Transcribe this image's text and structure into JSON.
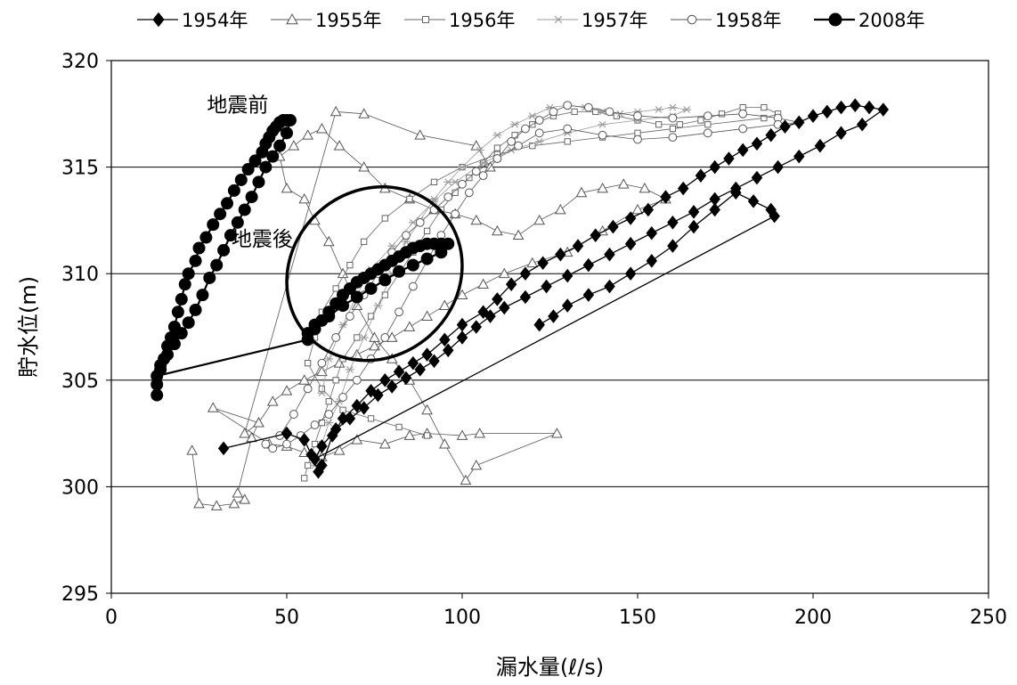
{
  "chart_data": {
    "type": "scatter",
    "xlabel": "漏水量(ℓ/s)",
    "ylabel": "貯水位(m)",
    "xlim": [
      0,
      250
    ],
    "ylim": [
      295,
      320
    ],
    "xticks": [
      0,
      50,
      100,
      150,
      200,
      250
    ],
    "yticks": [
      295,
      300,
      305,
      310,
      315,
      320
    ],
    "grid": "horizontal",
    "legend_position": "top",
    "annotations": [
      {
        "text": "地震前",
        "x": 36,
        "y": 317.6
      },
      {
        "text": "地震後",
        "x": 43,
        "y": 311.3
      }
    ],
    "highlight_ellipse": {
      "cx": 75,
      "cy": 310,
      "rx": 26,
      "ry": 3.9,
      "angle_deg": -42
    },
    "series": [
      {
        "name": "1954年",
        "marker": "diamond-filled",
        "color": "#000000",
        "x": [
          32,
          50,
          55,
          57,
          59,
          60,
          63,
          66,
          70,
          74,
          78,
          82,
          86,
          90,
          95,
          100,
          106,
          110,
          114,
          118,
          123,
          128,
          133,
          138,
          143,
          148,
          153,
          158,
          163,
          168,
          172,
          176,
          180,
          184,
          188,
          192,
          196,
          200,
          204,
          208,
          212,
          216,
          220,
          214,
          208,
          202,
          196,
          190,
          184,
          178,
          172,
          166,
          160,
          154,
          148,
          142,
          136,
          130,
          124,
          118,
          112,
          108,
          104,
          100,
          96,
          92,
          88,
          84,
          80,
          76,
          72,
          68,
          64,
          60,
          58,
          189,
          188,
          183,
          178,
          172,
          166,
          160,
          154,
          148,
          142,
          136,
          130,
          126,
          122
        ],
        "y": [
          301.8,
          302.5,
          302.2,
          301.5,
          300.7,
          301.0,
          302.4,
          303.2,
          303.8,
          304.5,
          305.0,
          305.4,
          305.8,
          306.2,
          306.9,
          307.6,
          308.2,
          308.8,
          309.5,
          310.0,
          310.5,
          310.9,
          311.3,
          311.8,
          312.2,
          312.6,
          313.0,
          313.6,
          314.0,
          314.6,
          315.0,
          315.4,
          315.8,
          316.1,
          316.5,
          316.9,
          317.1,
          317.4,
          317.6,
          317.8,
          317.9,
          317.8,
          317.7,
          317.0,
          316.6,
          316.0,
          315.5,
          315.0,
          314.5,
          314.0,
          313.5,
          312.9,
          312.4,
          311.9,
          311.4,
          310.9,
          310.4,
          309.9,
          309.4,
          308.9,
          308.4,
          308.0,
          307.5,
          307.0,
          306.4,
          305.9,
          305.5,
          305.1,
          304.7,
          304.3,
          303.7,
          303.2,
          302.7,
          301.9,
          301.3,
          312.7,
          313.0,
          313.4,
          313.8,
          313.0,
          312.2,
          311.3,
          310.6,
          310.0,
          309.4,
          309.0,
          308.5,
          308.0,
          307.6
        ]
      },
      {
        "name": "1955年",
        "marker": "triangle-open",
        "color": "#555555",
        "x": [
          23,
          25,
          30,
          35,
          38,
          36,
          40,
          42,
          29,
          45,
          50,
          55,
          60,
          65,
          70,
          78,
          85,
          90,
          100,
          105,
          127,
          104,
          101,
          95,
          90,
          85,
          80,
          75,
          70,
          66,
          62,
          58,
          55,
          50,
          48,
          52,
          56,
          60,
          65,
          72,
          78,
          85,
          92,
          98,
          104,
          110,
          116,
          122,
          128,
          134,
          140,
          146,
          152,
          158,
          150,
          140,
          130,
          120,
          112,
          106,
          100,
          95,
          90,
          85,
          80,
          75,
          70,
          65,
          60,
          55,
          50,
          46,
          42,
          38,
          64,
          72,
          88,
          104,
          108
        ],
        "y": [
          301.7,
          299.2,
          299.1,
          299.2,
          299.4,
          299.7,
          302.3,
          303.0,
          303.7,
          302.0,
          301.9,
          301.6,
          301.4,
          301.7,
          302.2,
          302.0,
          302.4,
          302.5,
          302.4,
          302.5,
          302.5,
          301.0,
          300.3,
          302.0,
          303.6,
          305.0,
          306.0,
          307.0,
          308.5,
          310.0,
          311.5,
          312.5,
          313.5,
          314.0,
          315.5,
          316.0,
          316.5,
          316.8,
          316.0,
          315.0,
          314.0,
          313.5,
          313.0,
          312.8,
          312.5,
          312.0,
          311.8,
          312.5,
          313.0,
          313.8,
          314.0,
          314.2,
          314.0,
          313.5,
          313.0,
          312.0,
          311.0,
          310.5,
          310.0,
          309.5,
          309.0,
          308.5,
          308.0,
          307.5,
          307.0,
          306.6,
          306.2,
          305.8,
          305.4,
          305.0,
          304.5,
          304.0,
          303.0,
          302.5,
          317.6,
          317.5,
          316.5,
          316.0,
          315.0
        ]
      },
      {
        "name": "1956年",
        "marker": "square-open",
        "color": "#666666",
        "x": [
          55,
          56,
          58,
          60,
          62,
          64,
          66,
          70,
          74,
          78,
          82,
          86,
          90,
          94,
          98,
          102,
          106,
          110,
          115,
          120,
          126,
          132,
          138,
          144,
          150,
          156,
          162,
          168,
          174,
          180,
          186,
          190,
          186,
          170,
          160,
          150,
          140,
          130,
          120,
          110,
          100,
          92,
          85,
          78,
          72,
          68,
          64,
          60,
          58,
          56,
          60,
          66,
          74,
          82,
          90
        ],
        "y": [
          300.4,
          301.0,
          302.0,
          303.0,
          304.0,
          305.0,
          306.0,
          307.0,
          308.0,
          309.0,
          310.0,
          311.0,
          312.0,
          313.0,
          313.8,
          314.5,
          315.2,
          315.9,
          316.5,
          317.0,
          317.4,
          317.6,
          317.6,
          317.4,
          317.2,
          317.0,
          317.0,
          317.2,
          317.5,
          317.8,
          317.8,
          317.5,
          317.3,
          317.0,
          316.8,
          316.6,
          316.4,
          316.2,
          316.0,
          315.6,
          315.0,
          314.3,
          313.5,
          312.6,
          311.5,
          310.4,
          309.3,
          308.2,
          307.0,
          305.8,
          304.6,
          303.6,
          303.2,
          302.8,
          302.4
        ]
      },
      {
        "name": "1957年",
        "marker": "asterisk",
        "color": "#999999",
        "x": [
          58,
          60,
          62,
          65,
          68,
          72,
          76,
          80,
          84,
          88,
          92,
          96,
          100,
          105,
          110,
          115,
          120,
          125,
          130,
          135,
          140,
          145,
          150,
          156,
          160,
          164,
          160,
          150,
          140,
          130,
          122,
          114,
          106,
          98,
          92,
          86,
          80,
          74,
          70,
          66,
          62,
          60
        ],
        "y": [
          301.0,
          302.0,
          303.0,
          304.0,
          305.5,
          307.0,
          308.5,
          310.0,
          311.5,
          312.5,
          313.5,
          314.3,
          315.0,
          315.8,
          316.5,
          317.0,
          317.4,
          317.8,
          317.9,
          317.8,
          317.6,
          317.5,
          317.6,
          317.7,
          317.8,
          317.7,
          317.4,
          317.2,
          317.0,
          316.6,
          316.2,
          315.8,
          315.2,
          314.3,
          313.4,
          312.4,
          311.3,
          310.2,
          309.0,
          307.6,
          306.0,
          304.4
        ]
      },
      {
        "name": "1958年",
        "marker": "circle-open",
        "color": "#555555",
        "x": [
          44,
          46,
          50,
          54,
          58,
          62,
          66,
          70,
          74,
          78,
          82,
          86,
          90,
          94,
          98,
          102,
          106,
          110,
          114,
          118,
          122,
          126,
          130,
          136,
          142,
          150,
          160,
          170,
          180,
          190,
          196,
          190,
          180,
          170,
          160,
          150,
          140,
          130,
          122,
          116,
          110,
          104,
          100,
          96,
          92,
          88,
          84,
          80,
          76,
          72,
          68,
          64,
          60,
          56,
          52,
          48
        ],
        "y": [
          302.0,
          301.8,
          302.0,
          302.4,
          302.9,
          303.4,
          304.2,
          305.0,
          306.0,
          307.0,
          308.2,
          309.4,
          310.6,
          311.8,
          312.8,
          313.8,
          314.6,
          315.4,
          316.2,
          316.8,
          317.2,
          317.6,
          317.9,
          317.8,
          317.6,
          317.4,
          317.3,
          317.4,
          317.5,
          317.3,
          317.1,
          317.0,
          316.8,
          316.6,
          316.4,
          316.3,
          316.5,
          316.8,
          316.6,
          316.0,
          315.4,
          314.8,
          314.2,
          313.6,
          313.0,
          312.4,
          311.8,
          311.0,
          310.0,
          309.0,
          308.0,
          307.0,
          305.8,
          304.6,
          303.4,
          302.4
        ]
      },
      {
        "name": "2008年",
        "marker": "circle-filled",
        "color": "#000000",
        "x": [
          13,
          13,
          14,
          15,
          16,
          17,
          18,
          19,
          20,
          21,
          22,
          24,
          25,
          27,
          29,
          31,
          33,
          35,
          37,
          39,
          41,
          43,
          44,
          45,
          46,
          47,
          48,
          49,
          50,
          51,
          50,
          48,
          46,
          44,
          42,
          40,
          38,
          36,
          34,
          32,
          30,
          28,
          26,
          24,
          22,
          20,
          18,
          16,
          14,
          13,
          56,
          58,
          60,
          62,
          64,
          66,
          68,
          70,
          72,
          74,
          76,
          78,
          80,
          82,
          84,
          86,
          88,
          90,
          92,
          94,
          96,
          94,
          90,
          86,
          82,
          78,
          74,
          70,
          66,
          62,
          58,
          56
        ],
        "y": [
          304.3,
          304.8,
          305.5,
          306.0,
          306.6,
          307.0,
          307.5,
          308.2,
          308.8,
          309.5,
          310.0,
          310.6,
          311.2,
          311.7,
          312.3,
          312.8,
          313.3,
          313.9,
          314.4,
          314.9,
          315.3,
          315.7,
          316.1,
          316.4,
          316.7,
          316.9,
          317.1,
          317.2,
          317.2,
          317.2,
          316.6,
          316.0,
          315.5,
          315.0,
          314.3,
          313.6,
          313.0,
          312.4,
          311.8,
          311.1,
          310.4,
          309.8,
          309.0,
          308.3,
          307.7,
          307.2,
          306.7,
          306.2,
          305.7,
          305.2,
          306.9,
          307.4,
          307.8,
          308.2,
          308.6,
          309.0,
          309.3,
          309.6,
          309.8,
          310.0,
          310.2,
          310.4,
          310.6,
          310.8,
          311.0,
          311.2,
          311.3,
          311.4,
          311.4,
          311.4,
          311.4,
          311.0,
          310.7,
          310.4,
          310.1,
          309.7,
          309.3,
          308.9,
          308.5,
          308.0,
          307.6,
          307.2
        ]
      }
    ]
  }
}
